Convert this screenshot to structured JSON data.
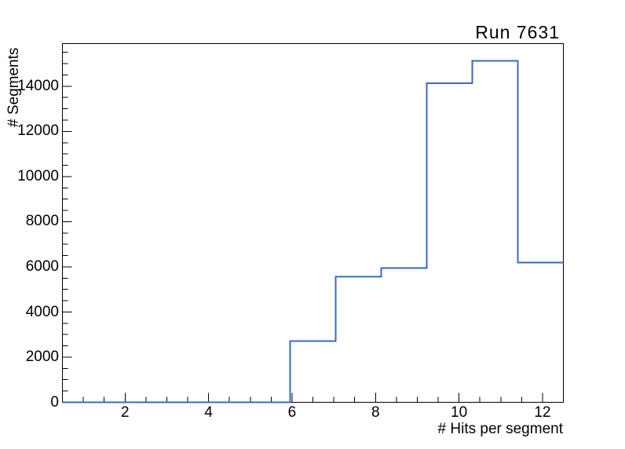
{
  "chart_data": {
    "type": "histogram",
    "title": "Run 7631",
    "xlabel": "# Hits per segment",
    "ylabel": "# Segments",
    "xlim": [
      0.5,
      12.5
    ],
    "ylim": [
      0,
      15890
    ],
    "bin_edges": [
      0.5,
      1.591,
      2.682,
      3.773,
      4.864,
      5.955,
      7.045,
      8.136,
      9.227,
      10.318,
      11.409,
      12.5
    ],
    "values": [
      0,
      0,
      0,
      0,
      0,
      2720,
      5570,
      5950,
      14130,
      15130,
      6190
    ],
    "x_major_ticks": [
      2,
      4,
      6,
      8,
      10,
      12
    ],
    "x_tick_labels": [
      "2",
      "4",
      "6",
      "8",
      "10",
      "12"
    ],
    "x_minor_step": 0.5,
    "y_major_ticks": [
      0,
      2000,
      4000,
      6000,
      8000,
      10000,
      12000,
      14000
    ],
    "y_tick_labels": [
      "0",
      "2000",
      "4000",
      "6000",
      "8000",
      "10000",
      "12000",
      "14000"
    ],
    "y_minor_step": 500,
    "grid": false,
    "legend": null,
    "line_color": "#3a68c2",
    "axis_color": "#000000",
    "background_color": "#ffffff"
  }
}
